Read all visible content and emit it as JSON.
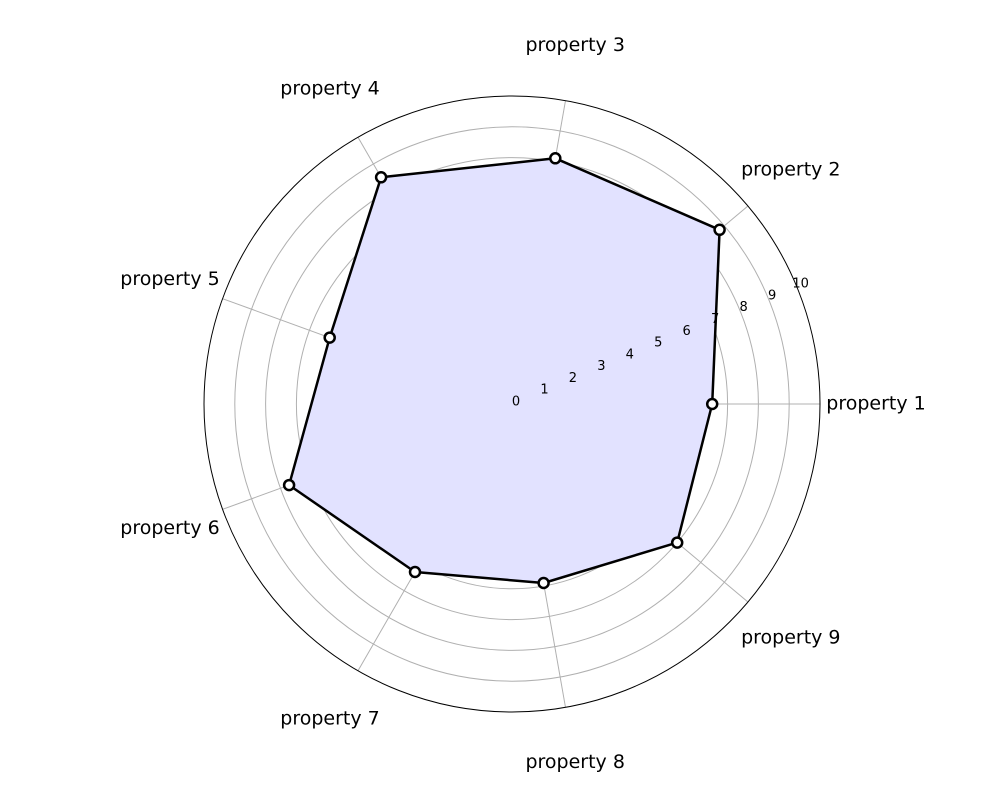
{
  "chart_data": {
    "type": "radar",
    "categories": [
      "property 1",
      "property 2",
      "property 3",
      "property 4",
      "property 5",
      "property 6",
      "property 7",
      "property 8",
      "property 9"
    ],
    "series": [
      {
        "values": [
          6.5,
          8.8,
          8.1,
          8.5,
          6.3,
          7.7,
          6.3,
          5.9,
          7.0
        ]
      }
    ],
    "rlim": [
      0,
      10
    ],
    "rticks": [
      "0",
      "1",
      "2",
      "3",
      "4",
      "5",
      "6",
      "7",
      "8",
      "9",
      "10"
    ],
    "grid": true,
    "colors": {
      "fill": "#e2e2ff",
      "line": "#000000",
      "grid": "#b0b0b0",
      "marker_face": "#ffffff"
    }
  }
}
